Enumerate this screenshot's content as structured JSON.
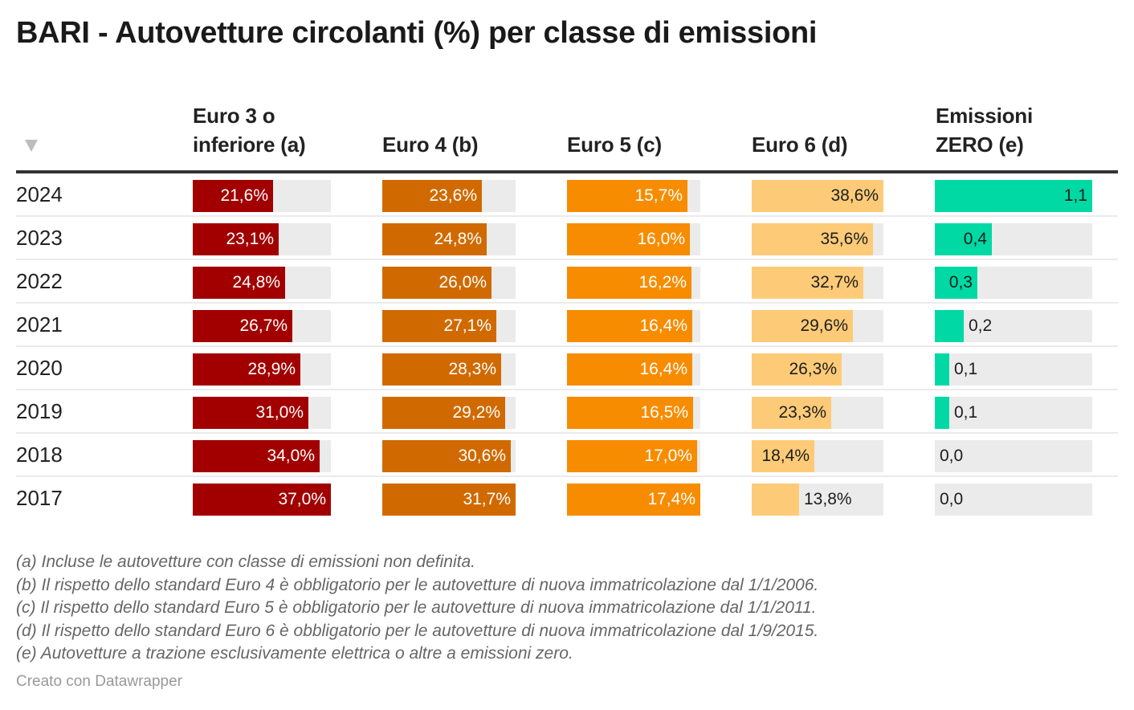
{
  "title": "BARI - Autovetture circolanti (%) per classe di emissioni",
  "sort_icon": "sort-desc-triangle-icon",
  "headers": {
    "col1_line1": "Euro 3 o",
    "col1_line2": "inferiore (a)",
    "col2": "Euro 4 (b)",
    "col3": "Euro 5 (c)",
    "col4": "Euro 6 (d)",
    "col5_line1": "Emissioni",
    "col5_line2": "ZERO (e)"
  },
  "colors": {
    "euro3": "#a20000",
    "euro4": "#d06a00",
    "euro5": "#f78c00",
    "euro6": "#fdcb78",
    "zero": "#00d9a4",
    "track": "#ebebeb"
  },
  "chart_data": {
    "type": "table",
    "title": "BARI - Autovetture circolanti (%) per classe di emissioni",
    "columns": [
      "Euro 3 o inferiore (a)",
      "Euro 4 (b)",
      "Euro 5 (c)",
      "Euro 6 (d)",
      "Emissioni ZERO (e)"
    ],
    "rows": [
      {
        "year": "2024",
        "values": [
          21.6,
          23.6,
          15.7,
          38.6,
          1.1
        ],
        "labels": [
          "21,6%",
          "23,6%",
          "15,7%",
          "38,6%",
          "1,1"
        ]
      },
      {
        "year": "2023",
        "values": [
          23.1,
          24.8,
          16.0,
          35.6,
          0.4
        ],
        "labels": [
          "23,1%",
          "24,8%",
          "16,0%",
          "35,6%",
          "0,4"
        ]
      },
      {
        "year": "2022",
        "values": [
          24.8,
          26.0,
          16.2,
          32.7,
          0.3
        ],
        "labels": [
          "24,8%",
          "26,0%",
          "16,2%",
          "32,7%",
          "0,3"
        ]
      },
      {
        "year": "2021",
        "values": [
          26.7,
          27.1,
          16.4,
          29.6,
          0.2
        ],
        "labels": [
          "26,7%",
          "27,1%",
          "16,4%",
          "29,6%",
          "0,2"
        ]
      },
      {
        "year": "2020",
        "values": [
          28.9,
          28.3,
          16.4,
          26.3,
          0.1
        ],
        "labels": [
          "28,9%",
          "28,3%",
          "16,4%",
          "26,3%",
          "0,1"
        ]
      },
      {
        "year": "2019",
        "values": [
          31.0,
          29.2,
          16.5,
          23.3,
          0.1
        ],
        "labels": [
          "31,0%",
          "29,2%",
          "16,5%",
          "23,3%",
          "0,1"
        ]
      },
      {
        "year": "2018",
        "values": [
          34.0,
          30.6,
          17.0,
          18.4,
          0.0
        ],
        "labels": [
          "34,0%",
          "30,6%",
          "17,0%",
          "18,4%",
          "0,0"
        ]
      },
      {
        "year": "2017",
        "values": [
          37.0,
          31.7,
          17.4,
          13.8,
          0.0
        ],
        "labels": [
          "37,0%",
          "31,7%",
          "17,4%",
          "13,8%",
          "0,0"
        ]
      }
    ],
    "column_max": [
      37.0,
      31.7,
      17.4,
      38.6,
      1.1
    ]
  },
  "notes": [
    "(a) Incluse le autovetture con classe di emissioni non definita.",
    "(b) Il rispetto dello standard Euro 4 è obbligatorio per le autovetture di nuova immatricolazione dal 1/1/2006.",
    "(c) Il rispetto dello standard Euro 5 è obbligatorio per le autovetture di nuova immatricolazione dal 1/1/2011.",
    "(d) Il rispetto dello standard Euro 6 è obbligatorio per le autovetture di nuova immatricolazione dal 1/9/2015.",
    "(e) Autovetture a trazione esclusivamente elettrica o altre a emissioni zero."
  ],
  "credit": "Creato con Datawrapper"
}
